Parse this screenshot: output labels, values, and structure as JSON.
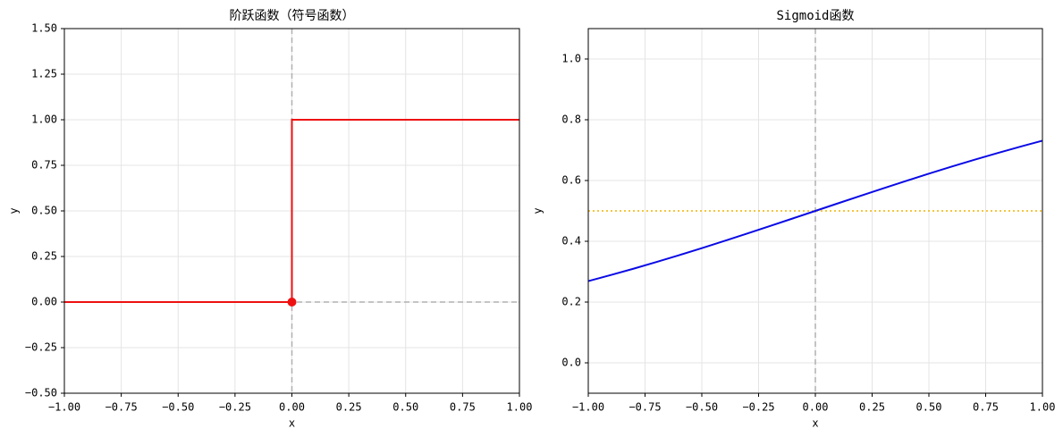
{
  "chart_data": [
    {
      "type": "line",
      "title": "阶跃函数（符号函数）",
      "x_label": "x",
      "y_label": "y",
      "xlim": [
        -1,
        1
      ],
      "ylim": [
        -0.5,
        1.5
      ],
      "grid": true,
      "xticks": [
        {
          "value": -1,
          "label": "−1.00"
        },
        {
          "value": -0.75,
          "label": "−0.75"
        },
        {
          "value": -0.5,
          "label": "−0.50"
        },
        {
          "value": -0.25,
          "label": "−0.25"
        },
        {
          "value": 0,
          "label": "0.00"
        },
        {
          "value": 0.25,
          "label": "0.25"
        },
        {
          "value": 0.5,
          "label": "0.50"
        },
        {
          "value": 0.75,
          "label": "0.75"
        },
        {
          "value": 1,
          "label": "1.00"
        }
      ],
      "yticks": [
        {
          "value": -0.5,
          "label": "−0.50"
        },
        {
          "value": -0.25,
          "label": "−0.25"
        },
        {
          "value": 0,
          "label": "0.00"
        },
        {
          "value": 0.25,
          "label": "0.25"
        },
        {
          "value": 0.5,
          "label": "0.50"
        },
        {
          "value": 0.75,
          "label": "0.75"
        },
        {
          "value": 1,
          "label": "1.00"
        },
        {
          "value": 1.25,
          "label": "1.25"
        },
        {
          "value": 1.5,
          "label": "1.50"
        }
      ],
      "reference_lines": [
        {
          "orientation": "vertical",
          "value": 0,
          "color": "#b0b0b0",
          "style": "dashed"
        },
        {
          "orientation": "horizontal",
          "value": 0,
          "color": "#b0b0b0",
          "style": "dashed"
        }
      ],
      "series": [
        {
          "color": "#ee1111",
          "x": [
            -1,
            0,
            0,
            1
          ],
          "values": [
            0,
            0,
            1,
            1
          ]
        },
        {
          "color": "#ee1111",
          "style": "marker",
          "x": [
            0
          ],
          "values": [
            0
          ]
        }
      ]
    },
    {
      "type": "line",
      "title": "Sigmoid函数",
      "x_label": "x",
      "y_label": "y",
      "xlim": [
        -1,
        1
      ],
      "ylim": [
        -0.1,
        1.1
      ],
      "grid": true,
      "xticks": [
        {
          "value": -1,
          "label": "−1.00"
        },
        {
          "value": -0.75,
          "label": "−0.75"
        },
        {
          "value": -0.5,
          "label": "−0.50"
        },
        {
          "value": -0.25,
          "label": "−0.25"
        },
        {
          "value": 0,
          "label": "0.00"
        },
        {
          "value": 0.25,
          "label": "0.25"
        },
        {
          "value": 0.5,
          "label": "0.50"
        },
        {
          "value": 0.75,
          "label": "0.75"
        },
        {
          "value": 1,
          "label": "1.00"
        }
      ],
      "yticks": [
        {
          "value": 0,
          "label": "0.0"
        },
        0.2,
        0.4,
        0.6,
        0.8,
        {
          "value": 1,
          "label": "1.0"
        }
      ],
      "reference_lines": [
        {
          "orientation": "vertical",
          "value": 0,
          "color": "#b0b0b0",
          "style": "dashed"
        },
        {
          "orientation": "horizontal",
          "value": 0.5,
          "color": "#f0b400",
          "style": "dotted"
        }
      ],
      "series": [
        {
          "color": "#0a0ae6",
          "x": [
            -1,
            -0.9,
            -0.8,
            -0.7,
            -0.6,
            -0.5,
            -0.4,
            -0.3,
            -0.2,
            -0.1,
            0,
            0.1,
            0.2,
            0.3,
            0.4,
            0.5,
            0.6,
            0.7,
            0.8,
            0.9,
            1
          ],
          "values": [
            0.2689,
            0.2891,
            0.31,
            0.3318,
            0.3543,
            0.3775,
            0.4013,
            0.4256,
            0.4502,
            0.475,
            0.5,
            0.525,
            0.5498,
            0.5744,
            0.5987,
            0.6225,
            0.6457,
            0.6682,
            0.69,
            0.7109,
            0.7311
          ]
        }
      ]
    }
  ]
}
